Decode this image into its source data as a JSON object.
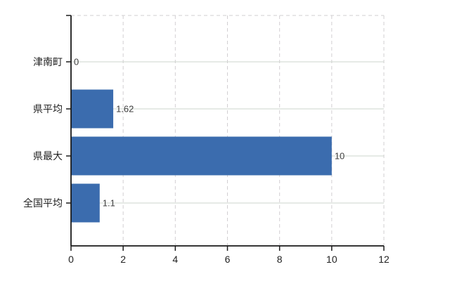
{
  "chart_data": {
    "type": "bar",
    "orientation": "horizontal",
    "title": "",
    "xlabel": "",
    "ylabel": "",
    "categories": [
      "津南町",
      "県平均",
      "県最大",
      "全国平均"
    ],
    "values": [
      0,
      1.62,
      10,
      1.1
    ],
    "value_labels": [
      "0",
      "1.62",
      "10",
      "1.1"
    ],
    "xlim": [
      0,
      12
    ],
    "xticks": [
      0,
      2,
      4,
      6,
      8,
      10,
      12
    ],
    "xtick_labels": [
      "0",
      "2",
      "4",
      "6",
      "8",
      "10",
      "12"
    ],
    "grid": true,
    "legend": false
  },
  "colors": {
    "bar": "#3b6cae",
    "grid_solid": "#ccd4cc",
    "grid_dashed": "#d2cfd2",
    "axis": "#1a1a1a",
    "tick_text": "#222222",
    "value_text": "#3f3f3f",
    "background": "#ffffff"
  }
}
